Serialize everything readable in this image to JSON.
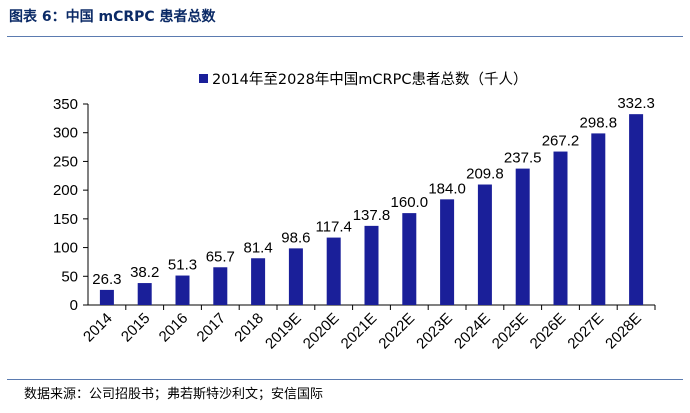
{
  "figure": {
    "title": "图表 6：中国 mCRPC 患者总数",
    "source": "数据来源：公司招股书；弗若斯特沙利文；安信国际"
  },
  "chart_data": {
    "type": "bar",
    "categories": [
      "2014",
      "2015",
      "2016",
      "2017",
      "2018",
      "2019E",
      "2020E",
      "2021E",
      "2022E",
      "2023E",
      "2024E",
      "2025E",
      "2026E",
      "2027E",
      "2028E"
    ],
    "series": [
      {
        "name": "2014年至2028年中国mCRPC患者总数（千人）",
        "values": [
          26.3,
          38.2,
          51.3,
          65.7,
          81.4,
          98.6,
          117.4,
          137.8,
          160.0,
          184.0,
          209.8,
          237.5,
          267.2,
          298.8,
          332.3
        ],
        "labels": [
          "26.3",
          "38.2",
          "51.3",
          "65.7",
          "81.4",
          "98.6",
          "117.4",
          "137.8",
          "160.0",
          "184.0",
          "209.8",
          "237.5",
          "267.2",
          "298.8",
          "332.3"
        ],
        "color": "#1a1f99"
      }
    ],
    "ylim": [
      0,
      350
    ],
    "yticks": [
      "0",
      "50",
      "100",
      "150",
      "200",
      "250",
      "300",
      "350"
    ],
    "legend": "top-center",
    "grid": false,
    "xlabel": "",
    "ylabel": ""
  }
}
